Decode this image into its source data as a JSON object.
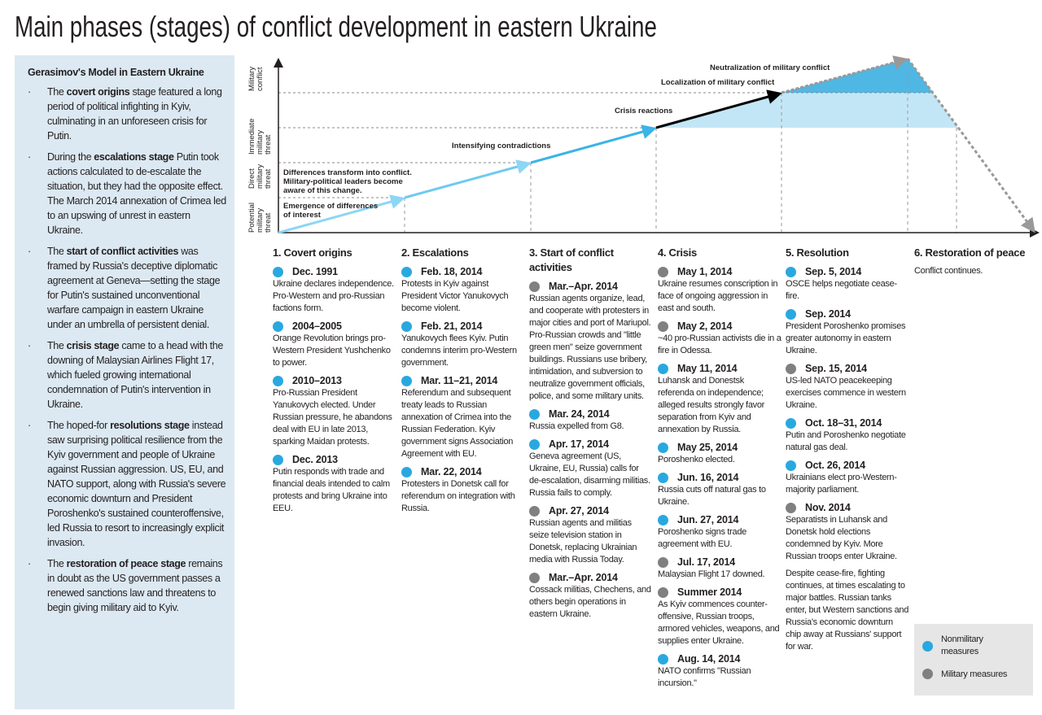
{
  "title": "Main phases (stages) of conflict development in eastern Ukraine",
  "colors": {
    "nonmilitary": "#29a8e0",
    "military": "#808080",
    "sidebar_bg": "#dce9f2"
  },
  "sidebar": {
    "heading": "Gerasimov's Model in Eastern Ukraine",
    "items": [
      {
        "pre": "The ",
        "bold": "covert origins",
        "post": " stage featured a long period of political infighting in Kyiv, culminating in an unforeseen crisis for Putin."
      },
      {
        "pre": "During the ",
        "bold": "escalations stage",
        "post": " Putin took actions calculated to de-escalate the situation, but they had the opposite effect. The March 2014 annexation of Crimea led to an upswing of unrest in eastern Ukraine."
      },
      {
        "pre": "The ",
        "bold": "start of conflict activities",
        "post": " was framed by Russia's deceptive diplomatic agreement at Geneva—setting the stage for Putin's sustained unconventional warfare campaign in eastern Ukraine under an umbrella of persistent denial."
      },
      {
        "pre": "The ",
        "bold": "crisis stage",
        "post": " came to a head with the downing of Malaysian Airlines Flight 17, which fueled growing international condemnation of Putin's intervention in Ukraine."
      },
      {
        "pre": "The hoped-for ",
        "bold": "resolutions stage",
        "post": " instead saw surprising political resilience from the Kyiv government and people of Ukraine against Russian aggression. US, EU, and NATO support, along with Russia's severe economic downturn and President Poroshenko's sustained counteroffensive, led Russia to resort to increasingly explicit invasion."
      },
      {
        "pre": "The ",
        "bold": "restoration of peace stage",
        "post": " remains in doubt as the US government passes a renewed sanctions law and threatens to begin giving military aid to Kyiv."
      }
    ]
  },
  "diagram": {
    "y_levels": [
      "Potential military threat",
      "Direct military threat",
      "Immediate military threat",
      "Military conflict"
    ],
    "labels": {
      "emergence": [
        "Emergence of differences",
        "of interest"
      ],
      "transform": [
        "Differences transform into conflict.",
        "Military-political leaders become",
        "aware of this change."
      ],
      "intensifying": "Intensifying contradictions",
      "crisis": "Crisis reactions",
      "localization": "Localization of military conflict",
      "neutralization": "Neutralization of military conflict"
    }
  },
  "columns": [
    {
      "heading": "1. Covert origins",
      "events": [
        {
          "date": "Dec. 1991",
          "type": "nonmilitary",
          "text": "Ukraine declares independence. Pro-Western and pro-Russian factions form."
        },
        {
          "date": "2004–2005",
          "type": "nonmilitary",
          "text": "Orange Revolution brings pro-Western President Yushchenko to power."
        },
        {
          "date": "2010–2013",
          "type": "nonmilitary",
          "text": "Pro-Russian President Yanukovych elected. Under Russian pressure, he abandons deal with EU in late 2013, sparking Maidan protests."
        },
        {
          "date": "Dec. 2013",
          "type": "nonmilitary",
          "text": "Putin responds with trade and financial deals intended to calm protests and bring Ukraine into EEU."
        }
      ]
    },
    {
      "heading": "2. Escalations",
      "events": [
        {
          "date": "Feb. 18, 2014",
          "type": "nonmilitary",
          "text": "Protests in Kyiv against President Victor Yanukovych become violent."
        },
        {
          "date": "Feb. 21, 2014",
          "type": "nonmilitary",
          "text": "Yanukovych flees Kyiv. Putin condemns interim pro-Western government."
        },
        {
          "date": "Mar. 11–21, 2014",
          "type": "nonmilitary",
          "text": "Referendum and subsequent treaty leads to Russian annexation of Crimea into the Russian Federation. Kyiv government signs Association Agreement with EU."
        },
        {
          "date": "Mar. 22, 2014",
          "type": "nonmilitary",
          "text": "Protesters in Donetsk call for referendum on integration with Russia."
        }
      ]
    },
    {
      "heading": "3. Start of conflict activities",
      "events": [
        {
          "date": "Mar.–Apr. 2014",
          "type": "military",
          "text": "Russian agents organize, lead, and cooperate with protesters in major cities and port of Mariupol. Pro-Russian crowds and \"little green men\" seize government buildings. Russians use bribery, intimidation, and subversion to neutralize government officials, police, and some military units."
        },
        {
          "date": "Mar. 24, 2014",
          "type": "nonmilitary",
          "text": "Russia expelled from G8."
        },
        {
          "date": "Apr. 17, 2014",
          "type": "nonmilitary",
          "text": "Geneva agreement (US, Ukraine, EU, Russia) calls for de-escalation, disarming militias. Russia fails to comply."
        },
        {
          "date": "Apr. 27, 2014",
          "type": "military",
          "text": "Russian agents and militias seize television station in Donetsk, replacing Ukrainian media with Russia Today."
        },
        {
          "date": "Mar.–Apr. 2014",
          "type": "military",
          "text": "Cossack militias, Chechens, and others begin operations in eastern Ukraine."
        }
      ]
    },
    {
      "heading": "4. Crisis",
      "events": [
        {
          "date": "May 1, 2014",
          "type": "military",
          "text": "Ukraine resumes conscription in face of ongoing aggression in east and south."
        },
        {
          "date": "May 2, 2014",
          "type": "military",
          "text": "~40 pro-Russian activists die in a fire in Odessa."
        },
        {
          "date": "May 11, 2014",
          "type": "nonmilitary",
          "text": "Luhansk and Donestsk referenda on independence; alleged results strongly favor separation from Kyiv and annexation by Russia."
        },
        {
          "date": "May 25, 2014",
          "type": "nonmilitary",
          "text": "Poroshenko elected."
        },
        {
          "date": "Jun. 16, 2014",
          "type": "nonmilitary",
          "text": "Russia cuts off natural gas to Ukraine."
        },
        {
          "date": "Jun. 27, 2014",
          "type": "nonmilitary",
          "text": "Poroshenko signs trade agreement with EU."
        },
        {
          "date": "Jul. 17, 2014",
          "type": "military",
          "text": "Malaysian Flight 17 downed."
        },
        {
          "date": "Summer 2014",
          "type": "military",
          "text": "As Kyiv commences counter-offensive, Russian troops, armored vehicles, weapons, and supplies enter Ukraine."
        },
        {
          "date": "Aug. 14, 2014",
          "type": "nonmilitary",
          "text": "NATO confirms \"Russian incursion.\""
        }
      ]
    },
    {
      "heading": "5. Resolution",
      "events": [
        {
          "date": "Sep. 5, 2014",
          "type": "nonmilitary",
          "text": "OSCE helps negotiate cease-fire."
        },
        {
          "date": "Sep. 2014",
          "type": "nonmilitary",
          "text": "President Poroshenko promises greater autonomy in eastern Ukraine."
        },
        {
          "date": "Sep. 15, 2014",
          "type": "military",
          "text": "US-led NATO peacekeeping exercises commence in western Ukraine."
        },
        {
          "date": "Oct. 18–31, 2014",
          "type": "nonmilitary",
          "text": "Putin and Poroshenko negotiate natural gas deal."
        },
        {
          "date": "Oct. 26, 2014",
          "type": "nonmilitary",
          "text": "Ukrainians elect pro-Western-majority parliament."
        },
        {
          "date": "Nov. 2014",
          "type": "military",
          "text": "Separatists in Luhansk and Donetsk hold elections condemned by Kyiv. More Russian troops enter Ukraine."
        }
      ],
      "note": "Despite cease-fire, fighting continues, at times escalating to major battles. Russian tanks enter, but Western sanctions and Russia's economic downturn chip away at Russians' support for war."
    },
    {
      "heading": "6. Restoration of peace",
      "events": [],
      "note": "Conflict continues."
    }
  ],
  "legend": {
    "nonmilitary": "Nonmilitary measures",
    "military": "Military measures"
  }
}
